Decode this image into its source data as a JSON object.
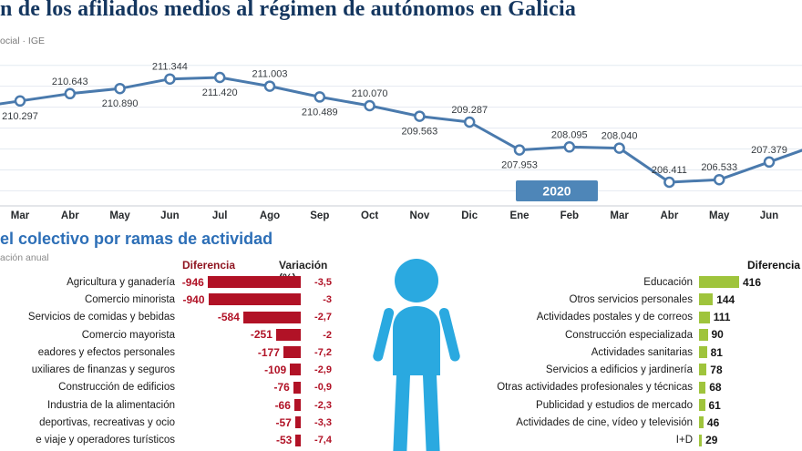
{
  "page": {
    "title_visible": "n de los afiliados medios al régimen de autónomos en Galicia",
    "source_visible": "ocial · IGE",
    "section_title_visible": "el colectivo por ramas de actividad",
    "section_subtitle_visible": "ación anual",
    "accent_colors": {
      "title_navy": "#14365f",
      "section_blue": "#2d6fb7",
      "line_blue": "#4a7aad",
      "year_box_blue": "#4e86b8",
      "negative_red": "#b11226",
      "positive_green": "#9fc43c",
      "person_blue": "#2aa9e0",
      "grid_gray": "#e4eaf1"
    }
  },
  "chart_data": [
    {
      "type": "line",
      "name": "afiliados-medios-mensuales",
      "x": [
        "Mar",
        "Abr",
        "May",
        "Jun",
        "Jul",
        "Ago",
        "Sep",
        "Oct",
        "Nov",
        "Dic",
        "Ene",
        "Feb",
        "Mar",
        "Abr",
        "May",
        "Jun"
      ],
      "values": [
        210297,
        210643,
        210890,
        211344,
        211420,
        211003,
        210489,
        210070,
        209563,
        209287,
        207953,
        208095,
        208040,
        206411,
        206533,
        207379
      ],
      "value_labels": [
        "210.297",
        "210.643",
        "210.890",
        "211.344",
        "211.420",
        "211.003",
        "210.489",
        "210.070",
        "209.563",
        "209.287",
        "207.953",
        "208.095",
        "208.040",
        "206.411",
        "206.533",
        "207.379"
      ],
      "label_position": [
        "below",
        "above",
        "below",
        "above",
        "below",
        "above",
        "below",
        "above",
        "below",
        "above",
        "below",
        "above",
        "above",
        "above",
        "above",
        "above"
      ],
      "year_marker": {
        "label": "2020",
        "between": [
          "Ene",
          "Feb"
        ]
      },
      "ylim": [
        206000,
        212000
      ],
      "grid": true,
      "legend": "none"
    },
    {
      "type": "bar",
      "name": "descensos-por-rama",
      "headers": [
        "Diferencia",
        "Variación (%)"
      ],
      "rows": [
        {
          "label": "Agricultura y ganadería",
          "diferencia": -946,
          "diferencia_label": "-946",
          "variacion_label": "-3,5"
        },
        {
          "label": "Comercio minorista",
          "diferencia": -940,
          "diferencia_label": "-940",
          "variacion_label": "-3"
        },
        {
          "label": "Servicios de comidas y bebidas",
          "diferencia": -584,
          "diferencia_label": "-584",
          "variacion_label": "-2,7"
        },
        {
          "label": "Comercio mayorista",
          "diferencia": -251,
          "diferencia_label": "-251",
          "variacion_label": "-2"
        },
        {
          "label": "eadores y efectos personales",
          "diferencia": -177,
          "diferencia_label": "-177",
          "variacion_label": "-7,2"
        },
        {
          "label": "uxiliares de finanzas y seguros",
          "diferencia": -109,
          "diferencia_label": "-109",
          "variacion_label": "-2,9"
        },
        {
          "label": "Construcción de edificios",
          "diferencia": -76,
          "diferencia_label": "-76",
          "variacion_label": "-0,9"
        },
        {
          "label": "Industria de la alimentación",
          "diferencia": -66,
          "diferencia_label": "-66",
          "variacion_label": "-2,3"
        },
        {
          "label": "deportivas, recreativas y ocio",
          "diferencia": -57,
          "diferencia_label": "-57",
          "variacion_label": "-3,3"
        },
        {
          "label": "e viaje y operadores turísticos",
          "diferencia": -53,
          "diferencia_label": "-53",
          "variacion_label": "-7,4"
        }
      ]
    },
    {
      "type": "bar",
      "name": "aumentos-por-rama",
      "header": "Diferencia",
      "rows": [
        {
          "label": "Educación",
          "diferencia": 416,
          "diferencia_label": "416"
        },
        {
          "label": "Otros servicios personales",
          "diferencia": 144,
          "diferencia_label": "144"
        },
        {
          "label": "Actividades postales y de correos",
          "diferencia": 111,
          "diferencia_label": "111"
        },
        {
          "label": "Construcción especializada",
          "diferencia": 90,
          "diferencia_label": "90"
        },
        {
          "label": "Actividades sanitarias",
          "diferencia": 81,
          "diferencia_label": "81"
        },
        {
          "label": "Servicios a edificios y jardinería",
          "diferencia": 78,
          "diferencia_label": "78"
        },
        {
          "label": "Otras actividades profesionales y técnicas",
          "diferencia": 68,
          "diferencia_label": "68"
        },
        {
          "label": "Publicidad y estudios de mercado",
          "diferencia": 61,
          "diferencia_label": "61"
        },
        {
          "label": "Actividades de cine, vídeo y televisión",
          "diferencia": 46,
          "diferencia_label": "46"
        },
        {
          "label": "I+D",
          "diferencia": 29,
          "diferencia_label": "29"
        }
      ]
    }
  ]
}
